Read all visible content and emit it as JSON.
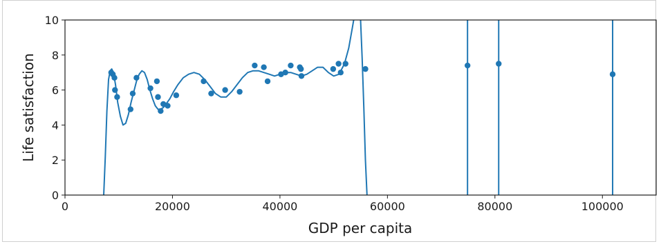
{
  "chart_data": {
    "type": "scatter",
    "title": "",
    "xlabel": "GDP per capita",
    "ylabel": "Life satisfaction",
    "xlim": [
      0,
      110000
    ],
    "ylim": [
      0,
      10
    ],
    "x_ticks": [
      0,
      20000,
      40000,
      60000,
      80000,
      100000
    ],
    "x_tick_labels": [
      "0",
      "20000",
      "40000",
      "60000",
      "80000",
      "100000"
    ],
    "y_ticks": [
      0,
      2,
      4,
      6,
      8,
      10
    ],
    "y_tick_labels": [
      "0",
      "2",
      "4",
      "6",
      "8",
      "10"
    ],
    "grid": false,
    "legend": "none",
    "colors": {
      "series": "#1f77b4",
      "axes": "#1a1a1a"
    },
    "series": [
      {
        "kind": "scatter",
        "x": [
          8600,
          8900,
          9200,
          9300,
          9700,
          12200,
          12600,
          13300,
          15900,
          17100,
          17300,
          17800,
          18300,
          19100,
          20700,
          25800,
          27200,
          29800,
          32500,
          35300,
          37000,
          37700,
          40200,
          41000,
          42000,
          43700,
          43900,
          44000,
          49900,
          50900,
          51300,
          52200,
          55900,
          74900,
          80700,
          101900
        ],
        "y": [
          7.0,
          6.9,
          6.7,
          6.0,
          5.6,
          4.9,
          5.8,
          6.7,
          6.1,
          6.5,
          5.6,
          4.8,
          5.2,
          5.1,
          5.7,
          6.5,
          5.8,
          6.0,
          5.9,
          7.4,
          7.3,
          6.5,
          6.9,
          7.0,
          7.4,
          7.3,
          7.2,
          6.8,
          7.2,
          7.5,
          7.0,
          7.5,
          7.2,
          7.4,
          7.5,
          6.9
        ]
      },
      {
        "kind": "line",
        "x": [
          7200,
          7500,
          7800,
          8100,
          8400,
          8700,
          9000,
          9400,
          9800,
          10300,
          10800,
          11300,
          11800,
          12300,
          12800,
          13300,
          13800,
          14300,
          14800,
          15300,
          15800,
          16300,
          16800,
          17300,
          17800,
          18300,
          18800,
          19500,
          20200,
          21000,
          22000,
          23000,
          24000,
          25000,
          26000,
          27000,
          28000,
          29000,
          30000,
          31000,
          32000,
          33000,
          34000,
          35000,
          36000,
          37000,
          38000,
          39000,
          40000,
          41000,
          42000,
          43000,
          44000,
          45000,
          46000,
          47000,
          48000,
          49000,
          50000,
          51000,
          52000,
          52800,
          53500,
          54000,
          54400
        ],
        "y": [
          0,
          2.2,
          4.8,
          6.6,
          7.1,
          7.2,
          7.0,
          6.3,
          5.3,
          4.5,
          4.0,
          4.1,
          4.6,
          5.3,
          5.9,
          6.5,
          6.9,
          7.1,
          7.0,
          6.6,
          6.0,
          5.5,
          5.1,
          4.9,
          4.9,
          5.0,
          5.2,
          5.5,
          5.9,
          6.3,
          6.7,
          6.9,
          7.0,
          6.9,
          6.6,
          6.2,
          5.8,
          5.6,
          5.6,
          5.9,
          6.3,
          6.7,
          7.0,
          7.1,
          7.1,
          7.0,
          6.9,
          6.8,
          6.9,
          7.0,
          7.0,
          6.9,
          6.8,
          6.9,
          7.1,
          7.3,
          7.3,
          7.0,
          6.8,
          6.9,
          7.5,
          8.4,
          9.6,
          10.5,
          11.0
        ]
      },
      {
        "kind": "line",
        "x": [
          54700,
          55000,
          55300,
          55600,
          55900,
          56200
        ],
        "y": [
          11.0,
          10.0,
          7.8,
          5.0,
          2.0,
          0
        ]
      },
      {
        "kind": "vline",
        "x": 74900,
        "y": [
          0,
          10
        ]
      },
      {
        "kind": "vline",
        "x": 80700,
        "y": [
          0,
          10
        ]
      },
      {
        "kind": "vline",
        "x": 101900,
        "y": [
          0,
          10
        ]
      }
    ]
  }
}
